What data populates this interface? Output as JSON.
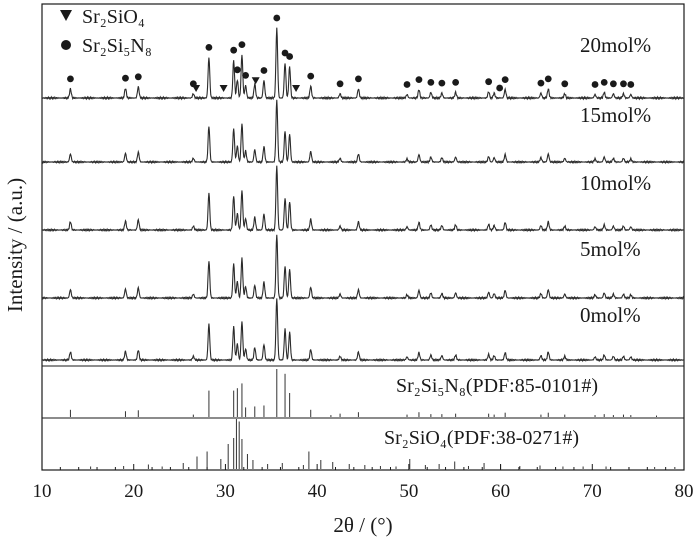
{
  "chart_data": {
    "type": "line",
    "xlabel": "2θ / (°)",
    "ylabel": "Intensity / (a.u.)",
    "xlim": [
      10,
      80
    ],
    "x_ticks": [
      10,
      20,
      30,
      40,
      50,
      60,
      70,
      80
    ],
    "grid": false,
    "legend": {
      "placement": "top-left",
      "entries": [
        {
          "symbol": "triangle-down",
          "text": "Sr₂SiO₄"
        },
        {
          "symbol": "circle",
          "text": "Sr₂Si₅N₈"
        }
      ]
    },
    "peaks_2theta": [
      13.1,
      19.1,
      20.5,
      26.5,
      28.2,
      30.9,
      31.3,
      31.8,
      32.2,
      33.2,
      34.2,
      35.6,
      36.5,
      37.0,
      39.3,
      42.5,
      44.5,
      49.8,
      51.1,
      52.4,
      53.6,
      55.1,
      58.7,
      59.3,
      60.5,
      64.4,
      65.2,
      67.0,
      70.3,
      71.3,
      72.3,
      73.4,
      74.2
    ],
    "peak_heights": [
      0.13,
      0.14,
      0.16,
      0.06,
      0.58,
      0.54,
      0.26,
      0.62,
      0.18,
      0.2,
      0.25,
      1.0,
      0.5,
      0.45,
      0.17,
      0.06,
      0.13,
      0.05,
      0.12,
      0.08,
      0.07,
      0.08,
      0.09,
      0.07,
      0.12,
      0.07,
      0.13,
      0.06,
      0.05,
      0.08,
      0.06,
      0.06,
      0.05
    ],
    "series": [
      {
        "name": "20mol%"
      },
      {
        "name": "15mol%"
      },
      {
        "name": "10mol%"
      },
      {
        "name": "5mol%"
      },
      {
        "name": "0mol%"
      }
    ],
    "markers_20mol": {
      "circle_2theta": [
        13.1,
        19.1,
        20.5,
        26.5,
        28.2,
        30.9,
        31.3,
        31.8,
        32.2,
        34.2,
        35.6,
        36.5,
        37.0,
        39.3,
        42.5,
        44.5,
        49.8,
        51.1,
        52.4,
        53.6,
        55.1,
        58.7,
        59.9,
        60.5,
        64.4,
        65.2,
        67.0,
        70.3,
        71.3,
        72.3,
        73.4,
        74.2
      ],
      "triangle_2theta": [
        26.8,
        29.8,
        33.3,
        37.7
      ]
    },
    "reference_patterns": [
      {
        "label": "Sr₂Si₅N₈(PDF:85-0101#)",
        "sticks_2theta": [
          13.1,
          19.1,
          20.5,
          26.5,
          28.2,
          30.9,
          31.3,
          31.8,
          32.2,
          33.2,
          34.2,
          35.6,
          36.5,
          37.0,
          39.3,
          41.5,
          42.5,
          44.5,
          49.8,
          51.1,
          52.4,
          53.6,
          55.1,
          58.7,
          59.3,
          60.5,
          64.4,
          65.2,
          67.0,
          70.3,
          71.3,
          72.3,
          73.4,
          74.2,
          77.0
        ],
        "sticks_intensity": [
          0.15,
          0.12,
          0.14,
          0.05,
          0.55,
          0.55,
          0.6,
          0.7,
          0.2,
          0.22,
          0.24,
          1.0,
          0.9,
          0.5,
          0.15,
          0.04,
          0.07,
          0.1,
          0.05,
          0.1,
          0.06,
          0.06,
          0.07,
          0.07,
          0.05,
          0.09,
          0.05,
          0.09,
          0.05,
          0.04,
          0.06,
          0.04,
          0.05,
          0.04,
          0.03
        ]
      },
      {
        "label": "Sr₂SiO₄(PDF:38-0271#)",
        "sticks_2theta": [
          15.3,
          18.9,
          21.6,
          23.1,
          25.4,
          26.9,
          28.0,
          29.5,
          30.3,
          30.9,
          31.2,
          31.5,
          31.8,
          32.4,
          33.0,
          34.6,
          36.2,
          38.5,
          39.1,
          40.4,
          41.7,
          43.5,
          45.2,
          46.9,
          48.6,
          50.1,
          51.8,
          53.3,
          55.0,
          56.5,
          58.2,
          60.0,
          62.1,
          64.3,
          66.8,
          69.0,
          71.5,
          74.0,
          76.8,
          79.0
        ],
        "sticks_intensity": [
          0.05,
          0.06,
          0.09,
          0.05,
          0.12,
          0.25,
          0.35,
          0.2,
          0.5,
          0.62,
          1.0,
          0.95,
          0.6,
          0.3,
          0.18,
          0.1,
          0.12,
          0.08,
          0.35,
          0.18,
          0.14,
          0.1,
          0.08,
          0.06,
          0.05,
          0.2,
          0.08,
          0.1,
          0.15,
          0.06,
          0.12,
          0.09,
          0.06,
          0.07,
          0.05,
          0.05,
          0.05,
          0.04,
          0.04,
          0.04
        ]
      }
    ]
  }
}
